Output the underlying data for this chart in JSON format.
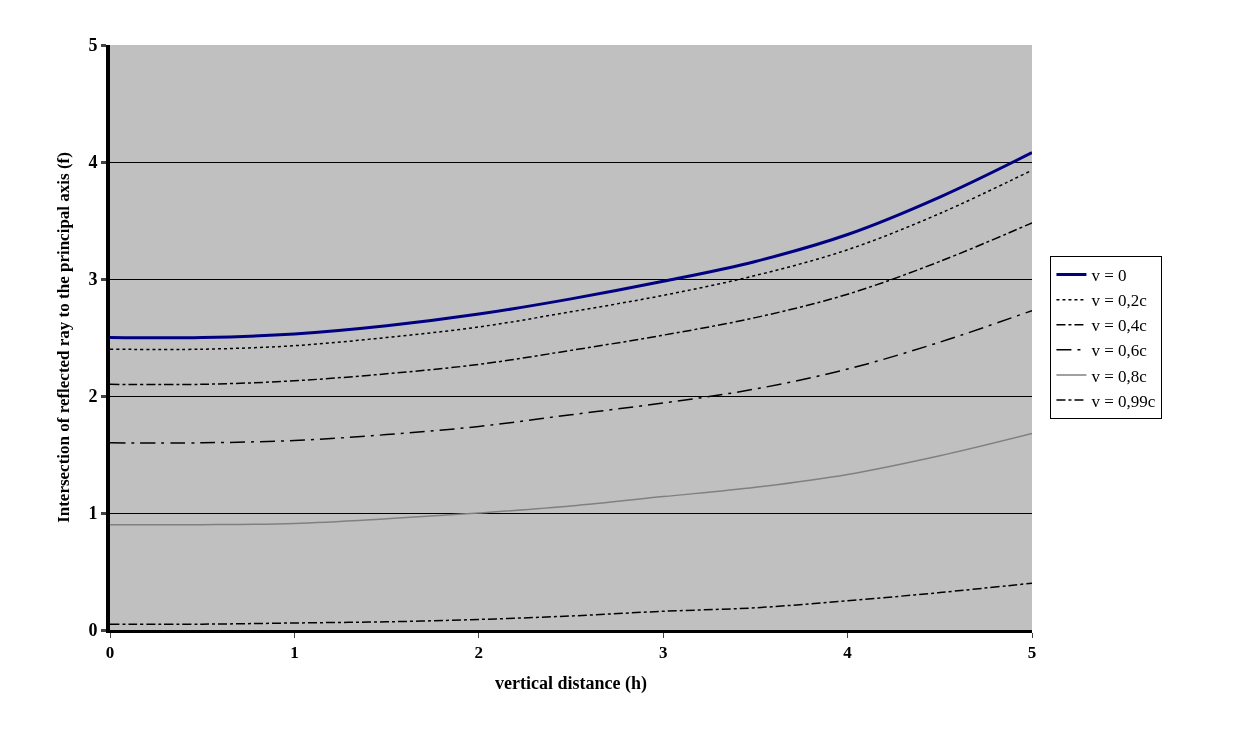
{
  "chart_data": {
    "type": "line",
    "xlabel": "vertical distance (h)",
    "ylabel": "Intersection of reflected ray to the principal axis (f)",
    "x": [
      0,
      0.5,
      1,
      1.5,
      2,
      2.5,
      3,
      3.5,
      4,
      4.5,
      5
    ],
    "series": [
      {
        "name": "v = 0",
        "color": "#000080",
        "line_style": "solid",
        "values": [
          2.5,
          2.5,
          2.53,
          2.6,
          2.7,
          2.83,
          2.98,
          3.15,
          3.38,
          3.7,
          4.08
        ]
      },
      {
        "name": "v = 0,2c",
        "color": "#000000",
        "line_style": "dotted",
        "values": [
          2.4,
          2.4,
          2.43,
          2.5,
          2.59,
          2.72,
          2.86,
          3.03,
          3.25,
          3.56,
          3.93
        ]
      },
      {
        "name": "v = 0,4c",
        "color": "#000000",
        "line_style": "dashdot",
        "values": [
          2.1,
          2.1,
          2.13,
          2.19,
          2.27,
          2.39,
          2.52,
          2.67,
          2.87,
          3.15,
          3.48
        ]
      },
      {
        "name": "v = 0,6c",
        "color": "#000000",
        "line_style": "longdashdot",
        "values": [
          1.6,
          1.6,
          1.62,
          1.67,
          1.74,
          1.84,
          1.94,
          2.06,
          2.23,
          2.46,
          2.73
        ]
      },
      {
        "name": "v = 0,8c",
        "color": "#808080",
        "line_style": "solid",
        "values": [
          0.9,
          0.9,
          0.91,
          0.95,
          1.0,
          1.06,
          1.14,
          1.22,
          1.33,
          1.49,
          1.68
        ]
      },
      {
        "name": "v = 0,99c",
        "color": "#000000",
        "line_style": "dashdot",
        "values": [
          0.05,
          0.05,
          0.06,
          0.07,
          0.09,
          0.12,
          0.16,
          0.19,
          0.25,
          0.32,
          0.4
        ]
      }
    ],
    "xlim": [
      0,
      5
    ],
    "xticks": [
      0,
      1,
      2,
      3,
      4,
      5
    ],
    "ylim": [
      0,
      5
    ],
    "yticks": [
      0,
      1,
      2,
      3,
      4,
      5
    ],
    "grid": "y",
    "legend": "right",
    "marker": "none"
  }
}
